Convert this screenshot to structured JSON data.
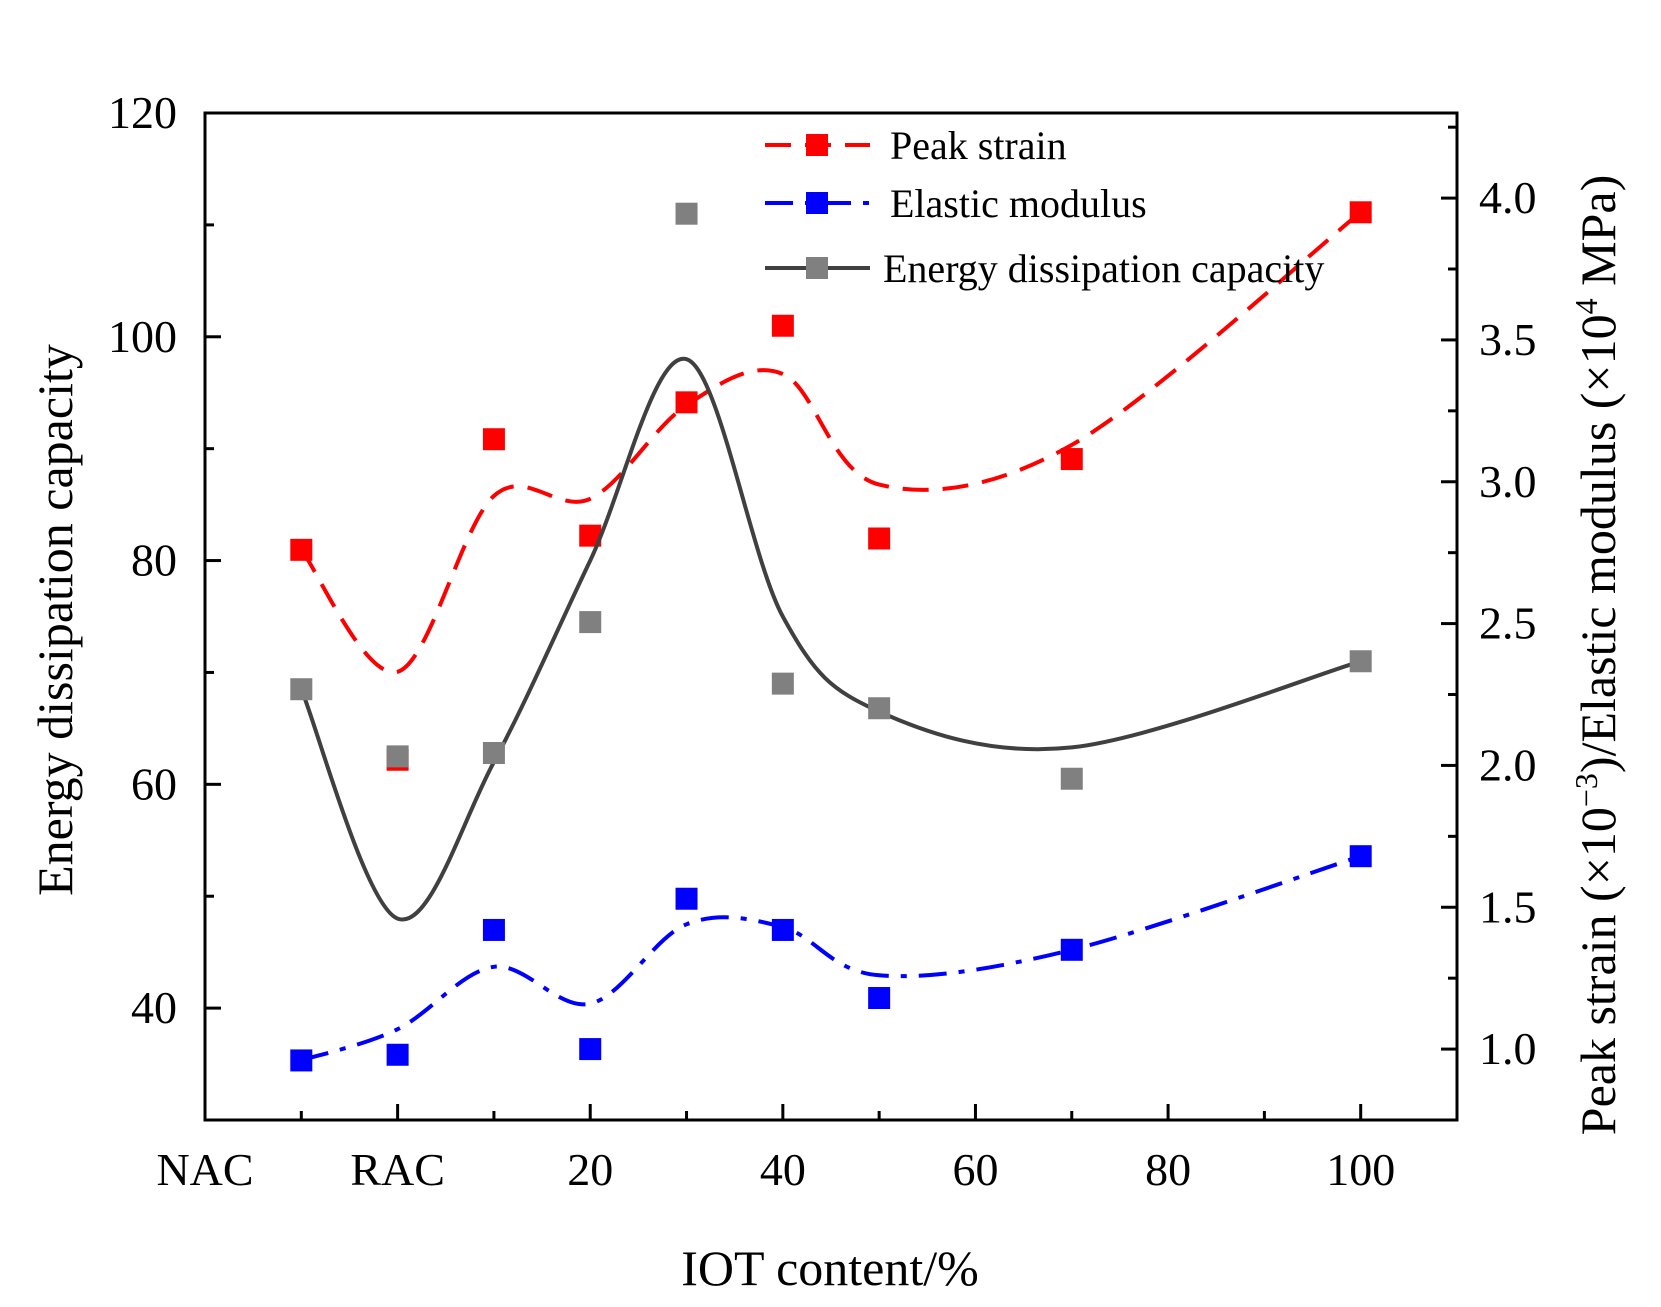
{
  "chart_data": {
    "type": "line",
    "x_tick_labels": [
      "NAC",
      "RAC",
      "20",
      "40",
      "60",
      "80",
      "100"
    ],
    "xlabel": "IOT content/%",
    "ylabel_left": "Energy dissipation capacity",
    "ylabel_right_parts": {
      "before": "Peak strain (×10",
      "exp1": "−3",
      "middle": ")/Elastic modulus (×10",
      "exp2": "4",
      "after": " MPa)"
    },
    "ylim_left": [
      30,
      120
    ],
    "ylim_right": [
      0.75,
      4.3
    ],
    "y_ticks_left": [
      40,
      60,
      80,
      100,
      120
    ],
    "y_ticks_right": [
      "1.0",
      "1.5",
      "2.0",
      "2.5",
      "3.0",
      "3.5",
      "4.0"
    ],
    "x_axis_range": [
      -20,
      110
    ],
    "x_positions": [
      -10,
      0,
      10,
      20,
      30,
      40,
      50,
      70,
      100
    ],
    "series": [
      {
        "name": "Peak strain",
        "axis": "right",
        "color": "#ff0000",
        "line_style": "dashed",
        "points": [
          2.76,
          2.02,
          3.15,
          2.81,
          3.28,
          3.55,
          2.8,
          3.08,
          3.95
        ],
        "fit": [
          2.76,
          2.33,
          2.95,
          2.94,
          3.27,
          3.38,
          2.99,
          3.13,
          3.95
        ]
      },
      {
        "name": "Elastic modulus",
        "axis": "right",
        "color": "#0000ff",
        "line_style": "dash-dot",
        "points": [
          0.96,
          0.98,
          1.42,
          1.0,
          1.53,
          1.42,
          1.18,
          1.35,
          1.68
        ],
        "fit": [
          0.96,
          1.07,
          1.29,
          1.16,
          1.44,
          1.43,
          1.26,
          1.35,
          1.68
        ]
      },
      {
        "name": "Energy dissipation capacity",
        "axis": "left",
        "color": "#808080",
        "line_color": "#404040",
        "line_style": "solid",
        "points": [
          68.5,
          62.5,
          62.8,
          74.5,
          111.0,
          69.0,
          66.8,
          60.5,
          71.0
        ],
        "fit": [
          68.5,
          48.0,
          62.0,
          80.0,
          98.0,
          75.0,
          66.5,
          63.3,
          71.0
        ]
      }
    ]
  }
}
